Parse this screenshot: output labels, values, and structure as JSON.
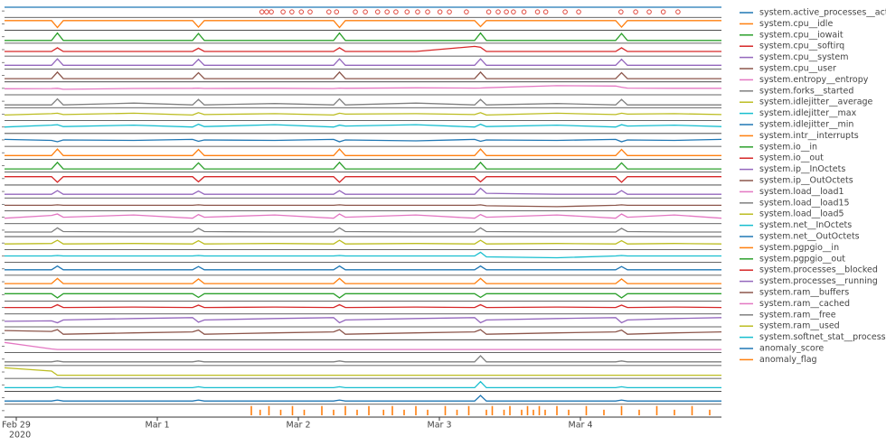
{
  "chart_data": {
    "type": "line",
    "x": [
      -2,
      6,
      7,
      8,
      20,
      30,
      31,
      32,
      44,
      54,
      55,
      56,
      68,
      78,
      79,
      80,
      92,
      102,
      103,
      104,
      112,
      120
    ],
    "xlim": [
      -2,
      120
    ],
    "xticks": [
      {
        "value": 0,
        "label": "Feb 29"
      },
      {
        "value": 24,
        "label": "Mar 1"
      },
      {
        "value": 48,
        "label": "Mar 2"
      },
      {
        "value": 72,
        "label": "Mar 3"
      },
      {
        "value": 96,
        "label": "Mar 4"
      }
    ],
    "year_label": "2020",
    "ylim": [
      0,
      100
    ],
    "anomaly_markers": {
      "color": "#e0473c",
      "x": [
        41.8,
        42.6,
        43.4,
        45.4,
        46.9,
        48.5,
        50,
        53.2,
        54.5,
        57.7,
        59.4,
        61.5,
        63.1,
        64.6,
        66.5,
        68.3,
        70,
        72.1,
        73.7,
        76.6,
        80.4,
        82,
        83.4,
        84.6,
        86.4,
        88.7,
        90.1,
        93.4,
        95.7,
        102.9,
        105.4,
        107.7,
        110.1,
        112.6
      ],
      "values": [
        40,
        40,
        40,
        40,
        40,
        40,
        40,
        40,
        40,
        40,
        40,
        40,
        40,
        40,
        40,
        40,
        40,
        40,
        40,
        40,
        40,
        40,
        40,
        40,
        40,
        40,
        40,
        40,
        40,
        40,
        40,
        40,
        40,
        40
      ]
    },
    "series": [
      {
        "name": "system.active_processes__active",
        "color": "#1f77b4",
        "values": [
          90,
          90,
          90,
          90,
          90,
          90,
          90,
          90,
          90,
          90,
          90,
          90,
          90,
          90,
          90,
          90,
          90,
          90,
          90,
          90,
          90,
          90
        ]
      },
      {
        "name": "system.cpu__idle",
        "color": "#ff7f0e",
        "values": [
          85,
          85,
          10,
          85,
          85,
          85,
          15,
          85,
          85,
          85,
          10,
          85,
          85,
          85,
          20,
          85,
          85,
          85,
          15,
          85,
          85,
          85
        ]
      },
      {
        "name": "system.cpu__iowait",
        "color": "#2ca02c",
        "values": [
          10,
          10,
          90,
          10,
          10,
          10,
          85,
          10,
          10,
          10,
          90,
          10,
          10,
          10,
          90,
          10,
          10,
          10,
          85,
          10,
          10,
          10
        ]
      },
      {
        "name": "system.cpu__softirq",
        "color": "#d62728",
        "values": [
          30,
          30,
          70,
          30,
          30,
          30,
          65,
          30,
          30,
          30,
          70,
          30,
          30,
          85,
          75,
          30,
          30,
          30,
          70,
          30,
          30,
          30
        ]
      },
      {
        "name": "system.cpu__system",
        "color": "#9467bd",
        "values": [
          20,
          20,
          90,
          20,
          20,
          20,
          85,
          20,
          20,
          20,
          90,
          20,
          20,
          20,
          90,
          20,
          20,
          20,
          85,
          20,
          20,
          20
        ]
      },
      {
        "name": "system.cpu__user",
        "color": "#8c564b",
        "values": [
          15,
          15,
          85,
          15,
          15,
          15,
          80,
          15,
          15,
          15,
          85,
          15,
          15,
          15,
          85,
          15,
          15,
          15,
          80,
          15,
          15,
          15
        ]
      },
      {
        "name": "system.entropy__entropy",
        "color": "#e377c2",
        "values": [
          45,
          47,
          50,
          40,
          48,
          50,
          52,
          48,
          50,
          47,
          52,
          50,
          55,
          52,
          53,
          56,
          78,
          75,
          62,
          52,
          50,
          50
        ]
      },
      {
        "name": "system.forks__started",
        "color": "#7f7f7f",
        "values": [
          10,
          10,
          75,
          10,
          30,
          10,
          70,
          10,
          25,
          10,
          75,
          10,
          30,
          10,
          70,
          10,
          25,
          10,
          70,
          10,
          10,
          10
        ]
      },
      {
        "name": "system.idlejitter__average",
        "color": "#bcbd22",
        "values": [
          40,
          55,
          60,
          45,
          60,
          40,
          65,
          45,
          55,
          40,
          60,
          50,
          55,
          45,
          65,
          40,
          60,
          45,
          60,
          50,
          55,
          45
        ]
      },
      {
        "name": "system.idlejitter__max",
        "color": "#17becf",
        "values": [
          50,
          70,
          75,
          55,
          70,
          50,
          80,
          55,
          75,
          50,
          70,
          60,
          75,
          50,
          80,
          55,
          70,
          50,
          75,
          60,
          70,
          55
        ]
      },
      {
        "name": "system.idlejitter__min",
        "color": "#1f77b4",
        "values": [
          55,
          45,
          30,
          50,
          45,
          55,
          35,
          50,
          45,
          55,
          30,
          50,
          40,
          55,
          35,
          50,
          45,
          55,
          30,
          50,
          45,
          55
        ]
      },
      {
        "name": "system.intr__interrupts",
        "color": "#ff7f0e",
        "values": [
          20,
          20,
          90,
          20,
          20,
          20,
          85,
          20,
          20,
          20,
          90,
          20,
          20,
          20,
          90,
          20,
          20,
          20,
          85,
          20,
          20,
          20
        ]
      },
      {
        "name": "system.io__in",
        "color": "#2ca02c",
        "values": [
          15,
          15,
          85,
          15,
          15,
          15,
          80,
          15,
          15,
          15,
          85,
          15,
          15,
          15,
          85,
          15,
          15,
          15,
          80,
          15,
          15,
          15
        ]
      },
      {
        "name": "system.io__out",
        "color": "#d62728",
        "values": [
          70,
          70,
          10,
          70,
          70,
          70,
          15,
          70,
          70,
          70,
          10,
          70,
          70,
          70,
          15,
          70,
          70,
          70,
          10,
          70,
          70,
          70
        ]
      },
      {
        "name": "system.ip__InOctets",
        "color": "#9467bd",
        "values": [
          20,
          20,
          60,
          20,
          20,
          20,
          55,
          20,
          20,
          20,
          60,
          20,
          20,
          20,
          85,
          30,
          20,
          20,
          60,
          20,
          20,
          20
        ]
      },
      {
        "name": "system.ip__OutOctets",
        "color": "#8c564b",
        "values": [
          40,
          40,
          45,
          40,
          40,
          40,
          45,
          40,
          40,
          40,
          45,
          40,
          40,
          40,
          45,
          35,
          25,
          40,
          45,
          40,
          40,
          40
        ]
      },
      {
        "name": "system.load__load1",
        "color": "#e377c2",
        "values": [
          40,
          70,
          85,
          50,
          75,
          40,
          80,
          50,
          75,
          40,
          85,
          50,
          75,
          40,
          80,
          50,
          75,
          40,
          85,
          50,
          75,
          40
        ]
      },
      {
        "name": "system.load__load15",
        "color": "#7f7f7f",
        "values": [
          30,
          30,
          75,
          35,
          30,
          30,
          70,
          35,
          30,
          30,
          75,
          35,
          30,
          30,
          75,
          35,
          30,
          30,
          70,
          35,
          30,
          30
        ]
      },
      {
        "name": "system.load__load5",
        "color": "#bcbd22",
        "values": [
          40,
          45,
          80,
          40,
          45,
          40,
          75,
          40,
          45,
          40,
          80,
          40,
          45,
          40,
          80,
          40,
          45,
          40,
          75,
          40,
          45,
          40
        ]
      },
      {
        "name": "system.net__InOctets",
        "color": "#17becf",
        "values": [
          50,
          50,
          55,
          50,
          50,
          50,
          55,
          50,
          50,
          50,
          55,
          50,
          50,
          50,
          90,
          40,
          30,
          50,
          55,
          50,
          50,
          50
        ]
      },
      {
        "name": "system.net__OutOctets",
        "color": "#1f77b4",
        "values": [
          40,
          40,
          80,
          40,
          40,
          40,
          75,
          40,
          40,
          40,
          80,
          40,
          40,
          40,
          80,
          40,
          40,
          40,
          75,
          40,
          40,
          40
        ]
      },
      {
        "name": "system.pgpgio__in",
        "color": "#ff7f0e",
        "values": [
          30,
          30,
          85,
          30,
          30,
          30,
          80,
          30,
          30,
          30,
          85,
          30,
          30,
          30,
          85,
          30,
          30,
          30,
          80,
          30,
          30,
          30
        ]
      },
      {
        "name": "system.pgpgio__out",
        "color": "#2ca02c",
        "values": [
          60,
          60,
          15,
          60,
          60,
          60,
          20,
          60,
          60,
          60,
          15,
          60,
          60,
          60,
          20,
          60,
          60,
          60,
          15,
          60,
          60,
          60
        ]
      },
      {
        "name": "system.processes__blocked",
        "color": "#d62728",
        "values": [
          50,
          50,
          80,
          50,
          55,
          50,
          75,
          50,
          55,
          50,
          80,
          50,
          55,
          50,
          80,
          50,
          55,
          50,
          75,
          50,
          55,
          50
        ]
      },
      {
        "name": "system.processes__running",
        "color": "#9467bd",
        "values": [
          40,
          45,
          25,
          55,
          70,
          80,
          30,
          55,
          70,
          80,
          25,
          55,
          70,
          80,
          25,
          55,
          70,
          80,
          25,
          55,
          70,
          80
        ]
      },
      {
        "name": "system.ram__buffers",
        "color": "#8c564b",
        "values": [
          80,
          70,
          90,
          40,
          55,
          65,
          85,
          40,
          55,
          65,
          90,
          40,
          55,
          65,
          90,
          40,
          55,
          65,
          85,
          40,
          55,
          65
        ]
      },
      {
        "name": "system.ram__cached",
        "color": "#e377c2",
        "values": [
          90,
          20,
          15,
          15,
          15,
          15,
          15,
          15,
          15,
          15,
          15,
          15,
          15,
          15,
          15,
          15,
          15,
          15,
          15,
          15,
          15,
          15
        ]
      },
      {
        "name": "system.ram__free",
        "color": "#7f7f7f",
        "values": [
          20,
          20,
          30,
          20,
          20,
          20,
          30,
          20,
          20,
          20,
          30,
          20,
          20,
          20,
          85,
          20,
          20,
          20,
          30,
          20,
          20,
          20
        ]
      },
      {
        "name": "system.ram__used",
        "color": "#bcbd22",
        "values": [
          95,
          60,
          15,
          15,
          15,
          15,
          15,
          15,
          15,
          15,
          15,
          15,
          15,
          15,
          15,
          15,
          15,
          15,
          15,
          15,
          15,
          15
        ]
      },
      {
        "name": "system.softnet_stat__processed",
        "color": "#17becf",
        "values": [
          20,
          20,
          30,
          20,
          20,
          20,
          30,
          20,
          20,
          20,
          30,
          20,
          20,
          20,
          85,
          20,
          20,
          20,
          30,
          20,
          20,
          20
        ]
      },
      {
        "name": "anomaly_score",
        "color": "#1f77b4",
        "values": [
          15,
          15,
          25,
          15,
          15,
          15,
          25,
          15,
          15,
          15,
          25,
          15,
          15,
          15,
          75,
          15,
          15,
          15,
          25,
          15,
          15,
          15
        ]
      },
      {
        "name": "anomaly_flag",
        "color": "#ff7f0e",
        "type": "bar",
        "x": [
          40,
          41.5,
          43,
          45,
          47,
          49,
          52,
          54,
          56,
          58,
          60,
          62.5,
          64,
          66,
          68,
          70,
          73,
          75,
          77,
          80,
          81,
          83,
          84,
          86,
          87,
          88,
          89,
          90,
          92,
          94,
          97,
          100,
          103,
          106,
          109,
          112,
          115,
          118
        ],
        "values": [
          100,
          60,
          100,
          60,
          100,
          60,
          100,
          60,
          100,
          60,
          100,
          60,
          100,
          60,
          100,
          60,
          100,
          60,
          100,
          60,
          100,
          60,
          100,
          60,
          100,
          60,
          100,
          60,
          100,
          60,
          100,
          60,
          100,
          60,
          100,
          60,
          100,
          60
        ]
      }
    ]
  }
}
